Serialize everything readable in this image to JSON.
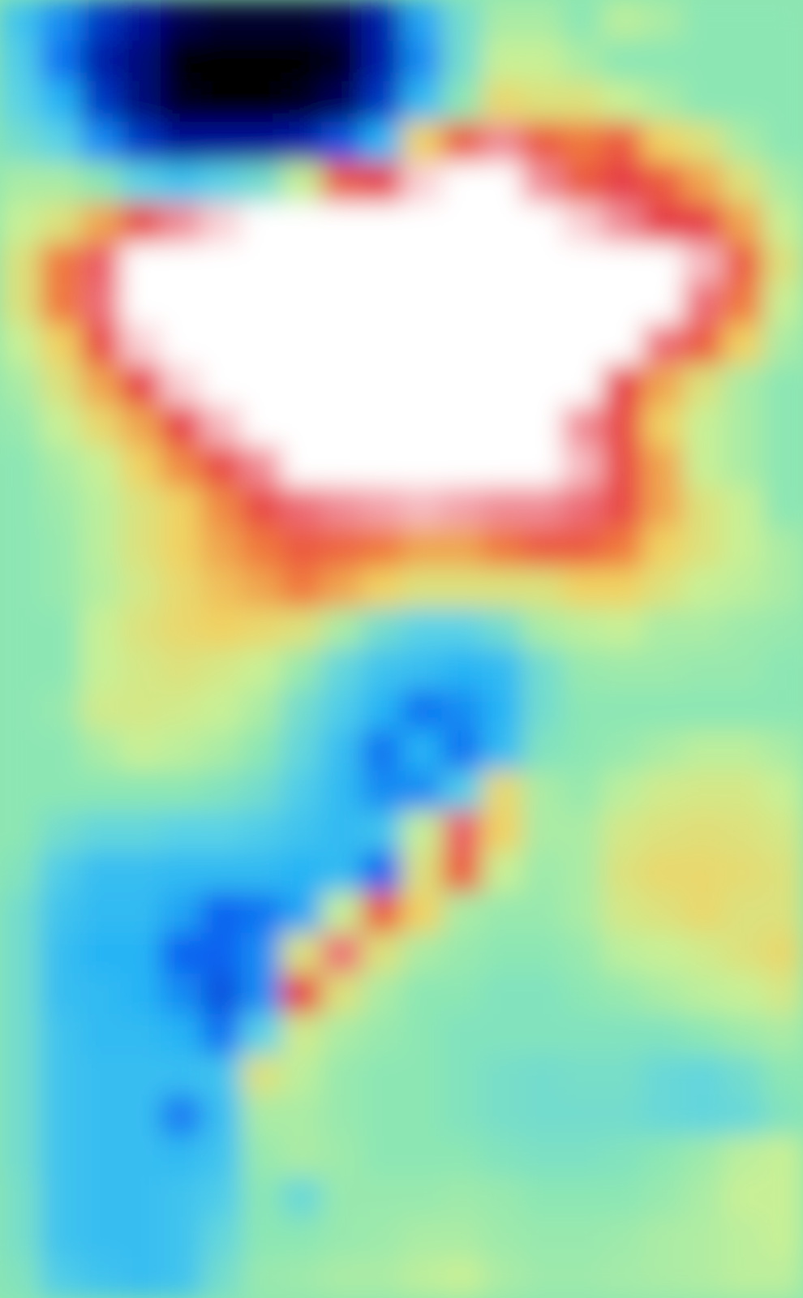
{
  "chart_data": {
    "type": "heatmap",
    "tick_labels": false,
    "color_range": [
      0,
      10
    ],
    "values": [
      [
        3.5,
        2.5,
        1.5,
        1,
        0.5,
        0.3,
        0.3,
        0.3,
        0.5,
        1.2,
        2.8,
        4.5,
        5.5,
        5.5,
        5,
        5.8,
        5.5,
        5,
        5,
        5
      ],
      [
        3.8,
        2.2,
        1.2,
        0.8,
        0,
        0,
        0,
        0,
        0.2,
        1.2,
        2.5,
        4.5,
        6,
        6,
        5.5,
        5,
        5,
        5,
        5,
        5
      ],
      [
        4,
        3,
        1.5,
        0.8,
        0.2,
        0,
        0,
        0.2,
        0.6,
        1.5,
        3.2,
        5,
        6.8,
        6.5,
        6.5,
        6,
        5.5,
        5,
        5,
        5
      ],
      [
        4.5,
        4,
        2.5,
        1.5,
        1,
        1,
        1,
        1.2,
        1.8,
        3,
        7,
        8.5,
        9.5,
        8.5,
        8,
        8.5,
        7,
        6.5,
        5.5,
        5
      ],
      [
        5.5,
        5.5,
        5,
        4,
        3.5,
        4,
        4.5,
        6,
        8.5,
        9,
        9.8,
        10,
        10,
        9.5,
        8.5,
        9,
        8.5,
        7.5,
        6.5,
        5.5
      ],
      [
        6,
        6.5,
        7.5,
        8.8,
        9.5,
        9.8,
        10,
        10,
        10,
        10,
        10,
        10,
        10,
        10,
        9.8,
        9.5,
        9,
        9,
        7.5,
        6
      ],
      [
        6.5,
        8,
        9.2,
        10,
        10,
        10,
        10,
        10,
        10,
        10,
        10,
        10,
        10,
        10,
        10,
        10,
        10,
        9.7,
        8.5,
        6.5
      ],
      [
        6.5,
        8,
        9.3,
        10,
        10,
        10,
        10,
        10,
        10,
        10,
        10,
        10,
        10,
        10,
        10,
        10,
        10,
        9.3,
        8,
        6
      ],
      [
        6,
        7,
        8.8,
        9.8,
        10,
        10,
        10,
        10,
        10,
        10,
        10,
        10,
        10,
        10,
        10,
        10,
        9.3,
        8.5,
        7,
        5.5
      ],
      [
        5.5,
        6.5,
        7.5,
        9,
        9.8,
        10,
        10,
        10,
        10,
        10,
        10,
        10,
        10,
        10,
        10,
        9,
        7.5,
        6.5,
        5.5,
        5
      ],
      [
        5.2,
        6,
        6.8,
        7.5,
        9,
        9.7,
        10,
        10,
        10,
        10,
        10,
        10,
        10,
        10,
        9.5,
        8.8,
        7,
        6,
        5.5,
        5
      ],
      [
        5,
        5.5,
        6,
        7,
        7.8,
        8.8,
        9.5,
        10,
        10,
        10,
        10,
        10,
        10,
        10,
        9.7,
        8.8,
        7.5,
        6,
        5.5,
        5
      ],
      [
        5,
        5.3,
        5.8,
        6.5,
        7,
        7.8,
        8.8,
        9.3,
        9.5,
        9.6,
        9.7,
        9.6,
        9.5,
        9.5,
        9.3,
        8.8,
        7.5,
        6.5,
        6,
        5
      ],
      [
        5,
        5.2,
        5.8,
        6.5,
        7,
        7.5,
        8,
        8.5,
        8.3,
        8,
        7.5,
        7.5,
        8,
        8.5,
        8.5,
        8,
        7,
        6.5,
        6,
        5.5
      ],
      [
        5,
        5.2,
        5.7,
        6.3,
        6.8,
        7.2,
        7.5,
        8,
        7.5,
        7,
        6.5,
        6.5,
        6.5,
        6.5,
        7,
        7,
        6.5,
        6,
        5.8,
        5.5
      ],
      [
        5,
        5,
        6,
        6.5,
        6.8,
        7,
        6.8,
        6.5,
        5.5,
        4.5,
        4,
        4,
        4.5,
        5.5,
        5.8,
        6,
        5.5,
        5.5,
        5.3,
        5.2
      ],
      [
        5,
        5,
        6,
        6.3,
        6.5,
        6.3,
        6,
        5.2,
        4.2,
        3.5,
        3.3,
        3,
        3.2,
        4.5,
        5.2,
        5.3,
        5.3,
        5.2,
        5.2,
        5
      ],
      [
        5,
        5.2,
        6.2,
        6.3,
        6.2,
        6,
        5.5,
        4.5,
        3.8,
        3,
        2.2,
        2.5,
        3,
        4.5,
        5,
        5,
        5,
        5,
        5,
        5
      ],
      [
        5,
        5,
        5.5,
        6,
        5.8,
        5.5,
        5,
        4.2,
        3.3,
        2.2,
        3,
        2.2,
        3.2,
        4.8,
        5,
        5.2,
        5.5,
        5.8,
        5.8,
        5.5
      ],
      [
        5,
        5,
        5,
        5,
        5,
        4.8,
        4.5,
        3.8,
        3.2,
        2.5,
        2.5,
        3.8,
        6.8,
        5.5,
        5.2,
        5.8,
        6.2,
        6.3,
        6.3,
        6
      ],
      [
        5,
        4.5,
        4.2,
        4.2,
        4,
        4,
        3.8,
        3.5,
        3.2,
        3.5,
        6,
        9.2,
        7,
        5.5,
        5.5,
        6.3,
        6.5,
        6.6,
        6.5,
        6.3
      ],
      [
        4.8,
        3.8,
        3.3,
        3.3,
        3.2,
        3.2,
        3.2,
        3,
        3.2,
        2,
        6.5,
        8.5,
        6,
        5.3,
        5.5,
        6.5,
        6.8,
        6.8,
        6.7,
        6.5
      ],
      [
        4.5,
        3.5,
        3.2,
        3.2,
        2.8,
        2,
        2.2,
        2.8,
        6,
        8.5,
        7,
        5.5,
        5.2,
        5.2,
        5.5,
        6.3,
        6.5,
        6.8,
        6.5,
        6.5
      ],
      [
        4.5,
        3.3,
        3,
        3,
        2,
        2,
        2.5,
        6.5,
        9.3,
        6.5,
        5.5,
        5.2,
        5,
        5,
        5.2,
        5.8,
        6,
        6.2,
        6.5,
        6.8
      ],
      [
        4.5,
        3.3,
        3.2,
        3,
        2.5,
        1.8,
        2.5,
        9,
        6.5,
        5.5,
        5,
        5,
        4.8,
        4.8,
        5,
        5.2,
        5.5,
        5.8,
        6,
        6.3
      ],
      [
        4.5,
        3.5,
        3.2,
        3.2,
        3,
        2.2,
        4,
        6.2,
        5.5,
        5.2,
        5,
        4.8,
        4.8,
        4.8,
        4.8,
        4.8,
        4.8,
        5,
        5.3,
        5.5
      ],
      [
        4.5,
        3.5,
        3.3,
        3.3,
        3.3,
        3.5,
        6.5,
        5.8,
        5.2,
        5,
        5,
        4.8,
        4.6,
        4.5,
        4.6,
        4.6,
        4.3,
        4.2,
        4.5,
        5
      ],
      [
        4.5,
        3.5,
        3.3,
        3.3,
        2.3,
        3.3,
        5.5,
        5.5,
        5.2,
        5,
        5,
        4.8,
        4.6,
        4.5,
        4.5,
        4.5,
        4.3,
        4.2,
        4.3,
        4.8
      ],
      [
        4.5,
        3.5,
        3.3,
        3.3,
        3.2,
        3.5,
        5.2,
        5.5,
        5.3,
        5,
        5,
        5,
        4.8,
        4.7,
        4.7,
        4.8,
        5,
        5.3,
        5.8,
        6
      ],
      [
        4.6,
        3.5,
        3.3,
        3.3,
        3.5,
        3.8,
        5,
        4.3,
        5.2,
        5.2,
        5.2,
        5.3,
        5.2,
        5,
        5,
        5,
        5.2,
        5.5,
        6,
        6
      ],
      [
        4.6,
        3.5,
        3.3,
        3.3,
        3.5,
        4.2,
        5,
        5,
        5.2,
        5.3,
        5.5,
        5.5,
        5.3,
        5.2,
        5.2,
        5.3,
        5.5,
        5.6,
        5.8,
        6
      ],
      [
        4.8,
        3.8,
        3.5,
        3.3,
        3.5,
        4.5,
        5.2,
        5.3,
        5.5,
        5.5,
        5.8,
        6,
        5.5,
        5.3,
        5.3,
        5.4,
        5.5,
        5.6,
        5.8,
        5.8
      ]
    ]
  }
}
